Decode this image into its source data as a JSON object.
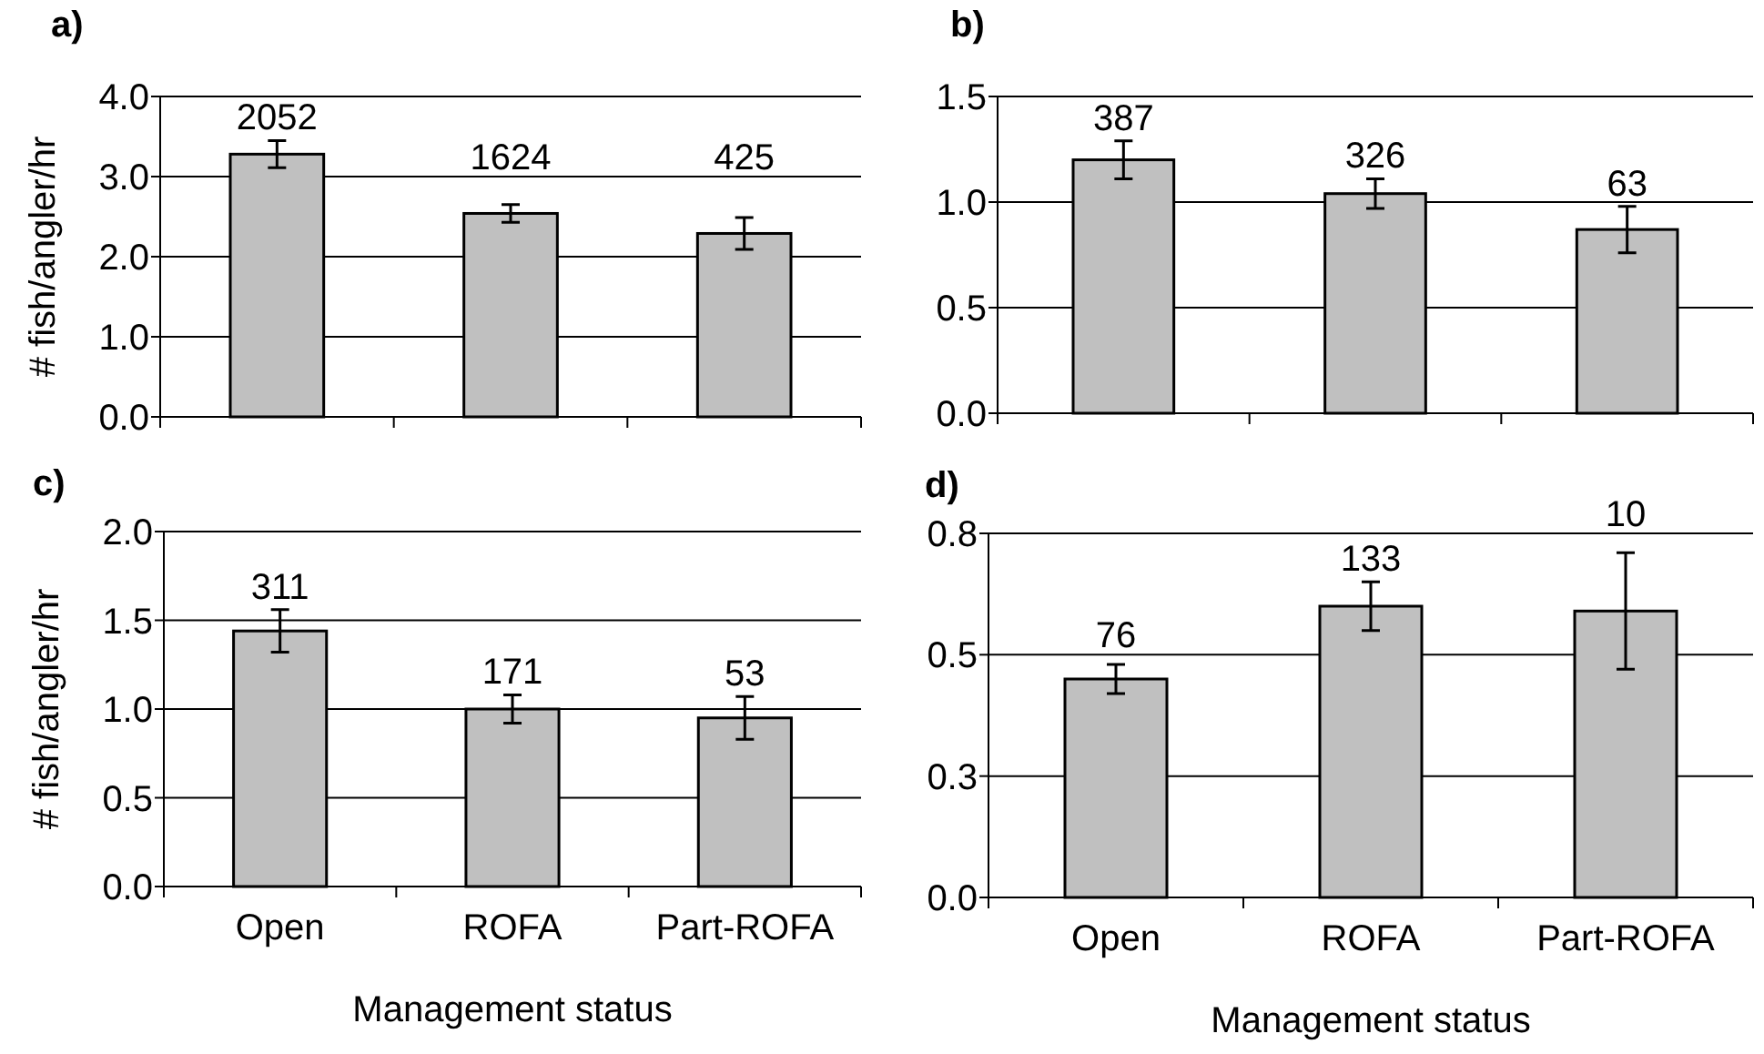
{
  "chart_data": [
    {
      "type": "bar",
      "title": "a)",
      "ylabel": "# fish/angler/hr",
      "categories": [
        "Open",
        "ROFA",
        "Part-ROFA"
      ],
      "tick_labels": "y",
      "values": [
        3.28,
        2.54,
        2.29
      ],
      "errors": [
        0.17,
        0.11,
        0.2
      ],
      "color": "#c0c0c0",
      "ylim": [
        0,
        4
      ],
      "yticks": [
        {
          "value": 0,
          "label": "0.0"
        },
        {
          "value": 1,
          "label": "1.0"
        },
        {
          "value": 2,
          "label": "2.0"
        },
        {
          "value": 3,
          "label": "3.0"
        },
        {
          "value": 4,
          "label": "4.0"
        }
      ],
      "grid": "y",
      "annotations": [
        {
          "text": "2052",
          "x": "Open",
          "y": 3.28
        },
        {
          "text": "1624",
          "x": "ROFA",
          "y": 2.54
        },
        {
          "text": "425",
          "x": "Part-ROFA",
          "y": 2.29
        }
      ]
    },
    {
      "type": "bar",
      "title": "b)",
      "categories": [
        "Open",
        "ROFA",
        "Part-ROFA"
      ],
      "tick_labels": "y",
      "values": [
        1.2,
        1.04,
        0.87
      ],
      "errors": [
        0.09,
        0.07,
        0.11
      ],
      "color": "#c0c0c0",
      "ylim": [
        0,
        1.5
      ],
      "yticks": [
        {
          "value": 0,
          "label": "0.0"
        },
        {
          "value": 0.5,
          "label": "0.5"
        },
        {
          "value": 1,
          "label": "1.0"
        },
        {
          "value": 1.5,
          "label": "1.5"
        }
      ],
      "grid": "y",
      "annotations": [
        {
          "text": "387",
          "x": "Open",
          "y": 1.2
        },
        {
          "text": "326",
          "x": "ROFA",
          "y": 1.04
        },
        {
          "text": "63",
          "x": "Part-ROFA",
          "y": 0.87
        }
      ]
    },
    {
      "type": "bar",
      "title": "c)",
      "ylabel": "# fish/angler/hr",
      "xlabel": "Management status",
      "categories": [
        "Open",
        "ROFA",
        "Part-ROFA"
      ],
      "values": [
        1.44,
        1.0,
        0.95
      ],
      "errors": [
        0.12,
        0.08,
        0.12
      ],
      "color": "#c0c0c0",
      "ylim": [
        0,
        2
      ],
      "yticks": [
        {
          "value": 0,
          "label": "0.0"
        },
        {
          "value": 0.5,
          "label": "0.5"
        },
        {
          "value": 1,
          "label": "1.0"
        },
        {
          "value": 1.5,
          "label": "1.5"
        },
        {
          "value": 2,
          "label": "2.0"
        }
      ],
      "grid": "y",
      "annotations": [
        {
          "text": "311",
          "x": "Open",
          "y": 1.44
        },
        {
          "text": "171",
          "x": "ROFA",
          "y": 1.0
        },
        {
          "text": "53",
          "x": "Part-ROFA",
          "y": 0.95
        }
      ]
    },
    {
      "type": "bar",
      "title": "d)",
      "xlabel": "Management status",
      "categories": [
        "Open",
        "ROFA",
        "Part-ROFA"
      ],
      "values": [
        0.45,
        0.6,
        0.59
      ],
      "errors": [
        0.03,
        0.05,
        0.12
      ],
      "color": "#c0c0c0",
      "ylim": [
        0,
        0.75
      ],
      "yticks": [
        {
          "value": 0,
          "label": "0.0"
        },
        {
          "value": 0.25,
          "label": "0.3"
        },
        {
          "value": 0.5,
          "label": "0.5"
        },
        {
          "value": 0.75,
          "label": "0.8"
        }
      ],
      "grid": "y",
      "annotations": [
        {
          "text": "76",
          "x": "Open",
          "y": 0.45
        },
        {
          "text": "133",
          "x": "ROFA",
          "y": 0.6
        },
        {
          "text": "10",
          "x": "Part-ROFA",
          "y": 0.59
        }
      ]
    }
  ]
}
